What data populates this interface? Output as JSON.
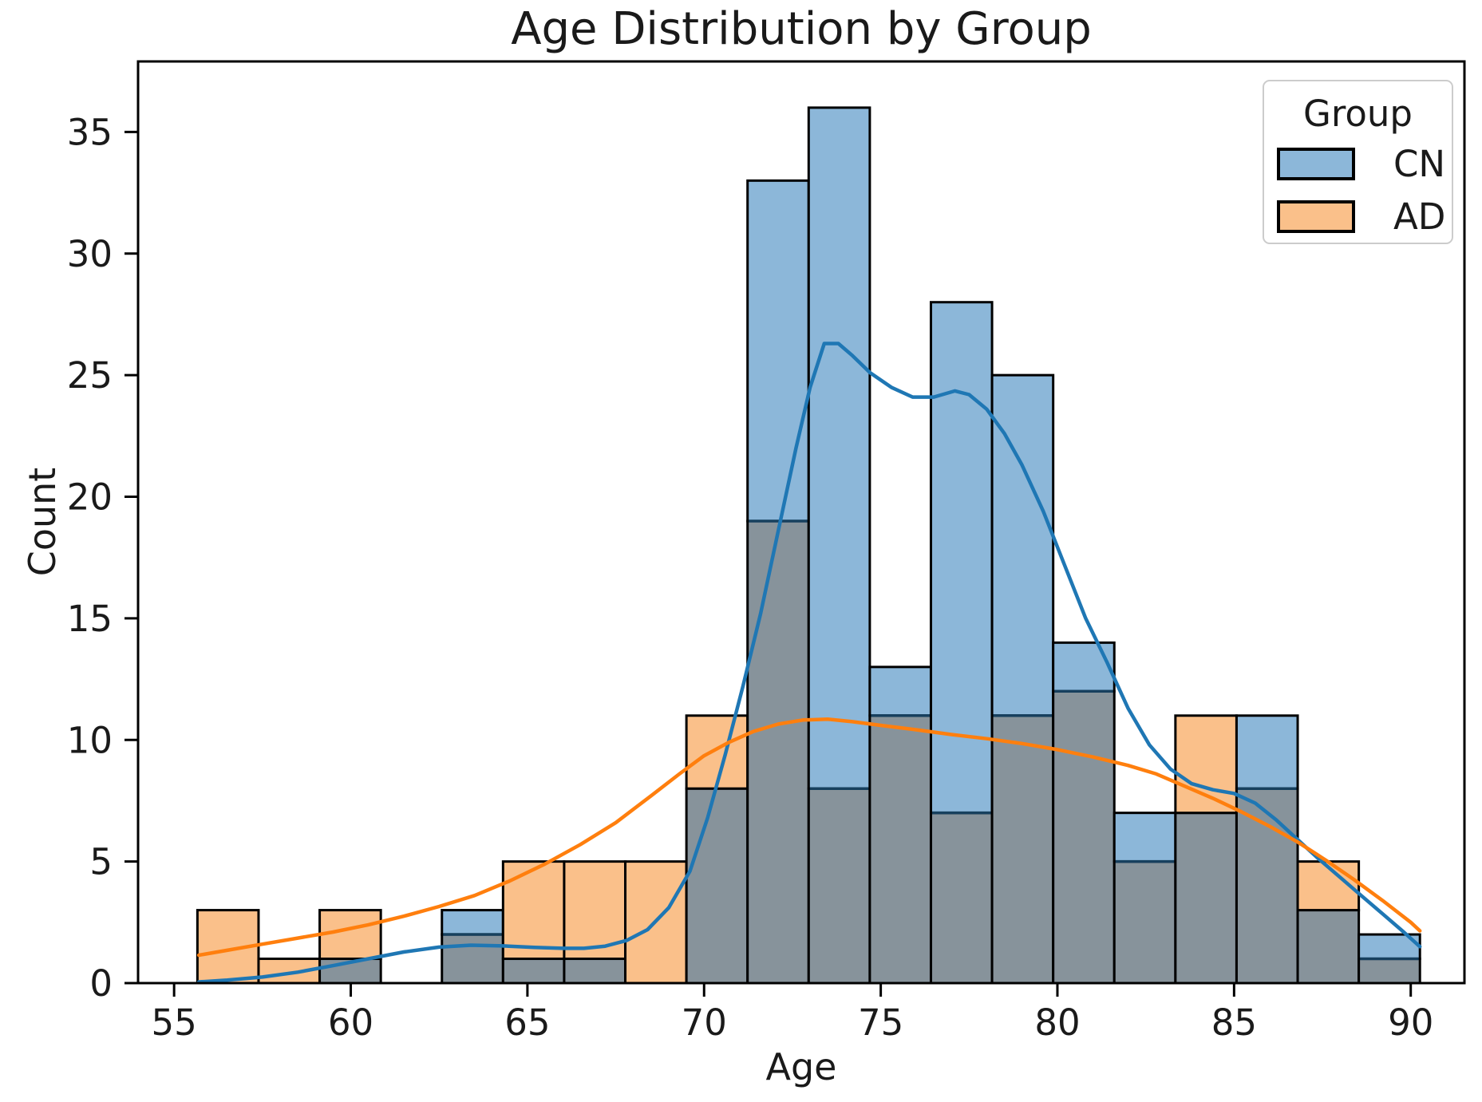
{
  "title": "Age Distribution by Group",
  "axes": {
    "x_label": "Age",
    "y_label": "Count",
    "x_ticks": [
      55,
      60,
      65,
      70,
      75,
      80,
      85,
      90
    ],
    "y_ticks": [
      0,
      5,
      10,
      15,
      20,
      25,
      30,
      35
    ],
    "x_range": [
      53.98,
      91.52
    ],
    "y_range": [
      0,
      37.9
    ],
    "grid": false
  },
  "legend": {
    "title": "Group",
    "position": "upper right",
    "entries": [
      {
        "label": "CN",
        "color": "#8cb7d9"
      },
      {
        "label": "AD",
        "color": "#fac08a"
      }
    ]
  },
  "colors": {
    "cn_fill": "#8cb7d9",
    "ad_fill": "#fac08a",
    "overlap_fill": "#87939b",
    "cn_line": "#1f77b4",
    "ad_line": "#ff7f0e",
    "bar_edge": "#000000",
    "cn_inner_edge": "#17405e",
    "spine": "#000000",
    "tick_text": "#1a1a1a"
  },
  "chart_data": {
    "type": "histogram+kde",
    "title": "Age Distribution by Group",
    "xlabel": "Age",
    "ylabel": "Count",
    "xlim": [
      53.98,
      91.52
    ],
    "ylim": [
      0,
      37.9
    ],
    "bin_edges": [
      55.66,
      57.39,
      59.12,
      60.85,
      62.58,
      64.31,
      66.04,
      67.77,
      69.5,
      71.23,
      72.96,
      74.69,
      76.42,
      78.15,
      79.88,
      81.61,
      83.34,
      85.07,
      86.8,
      88.53,
      90.26
    ],
    "series": [
      {
        "name": "CN",
        "counts": [
          0,
          0,
          1,
          0,
          3,
          1,
          1,
          0,
          8,
          33,
          36,
          13,
          28,
          25,
          14,
          7,
          7,
          11,
          3,
          2
        ]
      },
      {
        "name": "AD",
        "counts": [
          3,
          1,
          3,
          0,
          2,
          5,
          5,
          5,
          11,
          19,
          8,
          11,
          7,
          11,
          12,
          5,
          11,
          8,
          5,
          1
        ]
      }
    ],
    "kde": {
      "CN": [
        [
          55.7,
          0.05
        ],
        [
          56.5,
          0.12
        ],
        [
          57.5,
          0.25
        ],
        [
          58.5,
          0.45
        ],
        [
          59.5,
          0.72
        ],
        [
          60.5,
          1.0
        ],
        [
          61.5,
          1.28
        ],
        [
          62.5,
          1.48
        ],
        [
          63.4,
          1.56
        ],
        [
          64.3,
          1.53
        ],
        [
          65.2,
          1.47
        ],
        [
          66.0,
          1.43
        ],
        [
          66.6,
          1.43
        ],
        [
          67.2,
          1.52
        ],
        [
          67.8,
          1.75
        ],
        [
          68.4,
          2.2
        ],
        [
          69.0,
          3.1
        ],
        [
          69.6,
          4.6
        ],
        [
          70.1,
          6.8
        ],
        [
          70.6,
          9.4
        ],
        [
          71.1,
          12.2
        ],
        [
          71.6,
          15.2
        ],
        [
          72.1,
          18.6
        ],
        [
          72.6,
          22.0
        ],
        [
          73.0,
          24.5
        ],
        [
          73.4,
          26.3
        ],
        [
          73.8,
          26.3
        ],
        [
          74.2,
          25.8
        ],
        [
          74.7,
          25.1
        ],
        [
          75.3,
          24.5
        ],
        [
          75.9,
          24.1
        ],
        [
          76.5,
          24.1
        ],
        [
          77.1,
          24.35
        ],
        [
          77.5,
          24.2
        ],
        [
          78.0,
          23.6
        ],
        [
          78.5,
          22.6
        ],
        [
          79.0,
          21.3
        ],
        [
          79.6,
          19.4
        ],
        [
          80.2,
          17.2
        ],
        [
          80.8,
          15.0
        ],
        [
          81.4,
          13.2
        ],
        [
          82.0,
          11.3
        ],
        [
          82.6,
          9.8
        ],
        [
          83.2,
          8.8
        ],
        [
          83.8,
          8.2
        ],
        [
          84.4,
          7.95
        ],
        [
          85.0,
          7.8
        ],
        [
          85.6,
          7.4
        ],
        [
          86.2,
          6.7
        ],
        [
          86.8,
          5.9
        ],
        [
          87.4,
          5.1
        ],
        [
          88.0,
          4.35
        ],
        [
          88.6,
          3.6
        ],
        [
          89.2,
          2.85
        ],
        [
          89.8,
          2.1
        ],
        [
          90.26,
          1.5
        ]
      ],
      "AD": [
        [
          55.7,
          1.15
        ],
        [
          56.5,
          1.35
        ],
        [
          57.5,
          1.6
        ],
        [
          58.5,
          1.85
        ],
        [
          59.5,
          2.1
        ],
        [
          60.5,
          2.4
        ],
        [
          61.5,
          2.75
        ],
        [
          62.5,
          3.15
        ],
        [
          63.5,
          3.6
        ],
        [
          64.5,
          4.2
        ],
        [
          65.5,
          4.9
        ],
        [
          66.5,
          5.7
        ],
        [
          67.5,
          6.6
        ],
        [
          68.5,
          7.7
        ],
        [
          69.3,
          8.6
        ],
        [
          70.0,
          9.35
        ],
        [
          70.7,
          9.9
        ],
        [
          71.4,
          10.35
        ],
        [
          72.1,
          10.65
        ],
        [
          72.8,
          10.82
        ],
        [
          73.5,
          10.85
        ],
        [
          74.2,
          10.75
        ],
        [
          75.0,
          10.6
        ],
        [
          76.0,
          10.42
        ],
        [
          77.0,
          10.22
        ],
        [
          78.0,
          10.05
        ],
        [
          79.0,
          9.85
        ],
        [
          80.0,
          9.6
        ],
        [
          81.0,
          9.3
        ],
        [
          82.0,
          8.95
        ],
        [
          82.8,
          8.6
        ],
        [
          83.6,
          8.1
        ],
        [
          84.4,
          7.6
        ],
        [
          85.2,
          7.05
        ],
        [
          86.0,
          6.45
        ],
        [
          86.8,
          5.8
        ],
        [
          87.6,
          5.05
        ],
        [
          88.4,
          4.25
        ],
        [
          89.2,
          3.4
        ],
        [
          90.0,
          2.5
        ],
        [
          90.26,
          2.15
        ]
      ]
    }
  }
}
